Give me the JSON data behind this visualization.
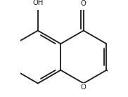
{
  "background": "#ffffff",
  "line_color": "#1a1a1a",
  "line_width": 1.3,
  "font_size": 7.2,
  "figsize": [
    1.82,
    1.38
  ],
  "dpi": 100,
  "label_O_carbonyl": "O",
  "label_OH": "OH",
  "label_O_ring": "O"
}
